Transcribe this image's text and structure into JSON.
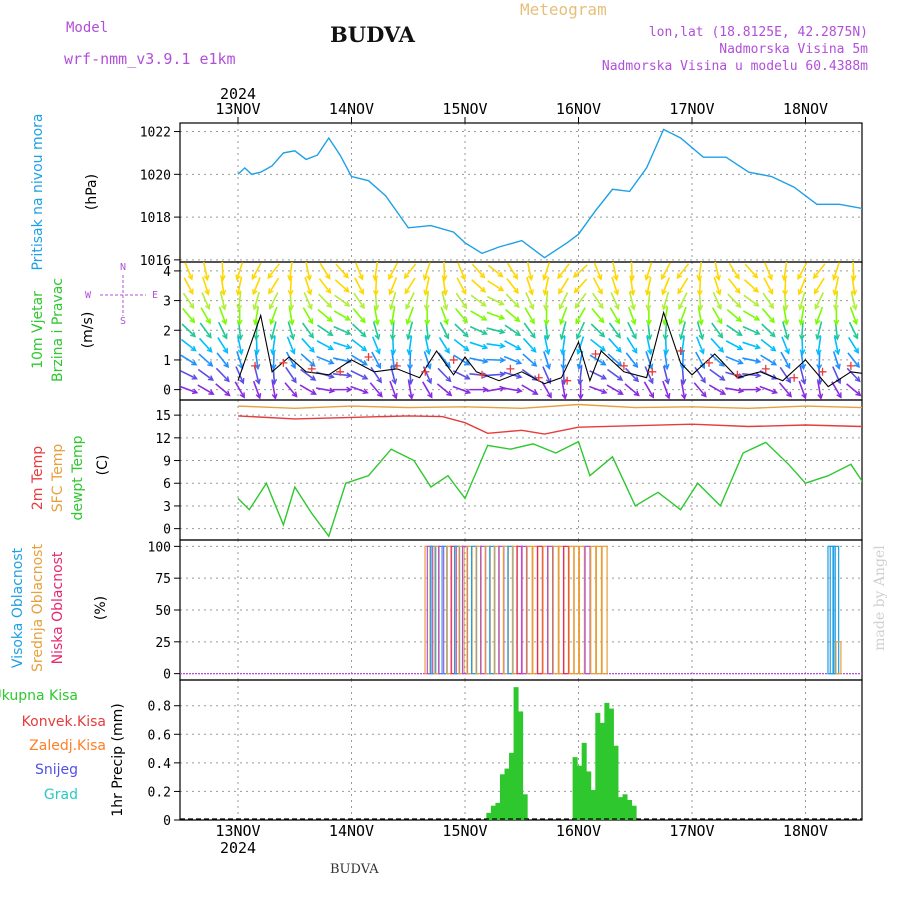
{
  "header": {
    "model_label": "Model",
    "model_name": "wrf-nmm_v3.9.1  e1km",
    "title": "BUDVA",
    "meteogram": "Meteogram",
    "lonlat": "lon,lat (18.8125E, 42.2875N)",
    "elevation": "Nadmorska Visina 5m",
    "model_elevation": "Nadmorska Visina u modelu 60.4388m",
    "footer": "BUDVA",
    "watermark": "made by Angel"
  },
  "colors": {
    "pressure": "#1ea0e6",
    "temp2m": "#e63c3c",
    "sfc": "#e6a03c",
    "dewpoint": "#2ec82e",
    "high_cloud": "#1ea0e6",
    "mid_cloud": "#e6a03c",
    "low_cloud": "#e6286e",
    "precip_total": "#2ec82e",
    "precip_conv": "#e63c3c",
    "precip_strat": "#ff7f27",
    "snow": "#5050e6",
    "graupel": "#28c8c8",
    "wind_speed": "#000000",
    "gust": "#e63c3c"
  },
  "chart_data": [
    {
      "type": "line",
      "xlabel": "",
      "x_ticks": [
        "13NOV",
        "14NOV",
        "15NOV",
        "16NOV",
        "17NOV",
        "18NOV"
      ],
      "year": "2024",
      "x": [
        0,
        0.06,
        0.12,
        0.2,
        0.3,
        0.4,
        0.5,
        0.6,
        0.7,
        0.8,
        0.9,
        1.0,
        1.15,
        1.3,
        1.5,
        1.7,
        1.9,
        2.0,
        2.15,
        2.3,
        2.5,
        2.7,
        2.9,
        3.0,
        3.15,
        3.3,
        3.45,
        3.6,
        3.75,
        3.9,
        4.1,
        4.3,
        4.5,
        4.7,
        4.9,
        5.1,
        5.3,
        5.5,
        5.7,
        5.85,
        6.0
      ],
      "values": [
        1020.0,
        1020.3,
        1020.0,
        1020.1,
        1020.4,
        1021.0,
        1021.1,
        1020.7,
        1020.9,
        1021.7,
        1020.9,
        1019.9,
        1019.7,
        1019.0,
        1017.5,
        1017.6,
        1017.3,
        1016.8,
        1016.3,
        1016.6,
        1016.9,
        1016.1,
        1016.8,
        1017.2,
        1018.3,
        1019.3,
        1019.2,
        1020.3,
        1022.1,
        1021.7,
        1020.8,
        1020.8,
        1020.1,
        1019.9,
        1019.4,
        1018.6,
        1018.6,
        1018.4,
        1017.8,
        1017.9,
        1017.0
      ],
      "ylabel": "(hPa)",
      "panel_label": "Pritisak na nivou mora",
      "ylim": [
        1015.9,
        1022.4
      ],
      "y_ticks": [
        1016,
        1018,
        1020,
        1022
      ]
    },
    {
      "type": "line",
      "panel_label_1": "10m Vjetar",
      "panel_label_2": "Brzina i Pravac",
      "ylabel": "(m/s)",
      "compass": [
        "N",
        "W",
        "E",
        "S"
      ],
      "ylim": [
        -0.35,
        4.3
      ],
      "y_ticks": [
        0,
        1,
        2,
        3,
        4
      ],
      "x": [
        0,
        0.2,
        0.3,
        0.45,
        0.6,
        0.8,
        1.0,
        1.2,
        1.4,
        1.6,
        1.75,
        1.9,
        2.0,
        2.1,
        2.3,
        2.5,
        2.7,
        2.85,
        3.0,
        3.1,
        3.2,
        3.4,
        3.6,
        3.75,
        3.9,
        4.0,
        4.2,
        4.4,
        4.6,
        4.8,
        5.0,
        5.2,
        5.4,
        5.6,
        5.8,
        6.0
      ],
      "values": [
        0.3,
        2.5,
        0.6,
        1.1,
        0.6,
        0.5,
        1.0,
        0.6,
        0.7,
        0.4,
        1.3,
        0.5,
        1.1,
        0.6,
        0.3,
        0.6,
        0.2,
        0.4,
        1.6,
        0.3,
        1.3,
        0.6,
        0.4,
        2.6,
        0.9,
        0.5,
        1.2,
        0.4,
        0.6,
        0.3,
        1.0,
        0.1,
        0.6,
        0.5,
        2.0,
        2.8
      ],
      "gust_x": [
        0.15,
        0.4,
        0.65,
        0.9,
        1.15,
        1.4,
        1.65,
        1.9,
        2.15,
        2.4,
        2.65,
        2.9,
        3.15,
        3.4,
        3.65,
        3.9,
        4.15,
        4.4,
        4.65,
        4.9,
        5.15,
        5.4,
        5.65,
        5.9
      ],
      "gust_values": [
        0.8,
        0.9,
        0.7,
        0.6,
        1.1,
        0.8,
        0.6,
        1.0,
        0.5,
        0.7,
        0.4,
        0.3,
        1.2,
        0.8,
        0.6,
        1.3,
        0.9,
        0.5,
        0.7,
        0.4,
        0.6,
        0.8,
        1.9,
        2.9
      ],
      "arrow_levels": [
        0,
        0.5,
        1.0,
        1.5,
        2.0,
        2.5,
        3.0,
        3.5,
        4.0
      ],
      "arrow_colors": [
        "#8a2be2",
        "#5a50e6",
        "#1e90ff",
        "#00bfff",
        "#20c997",
        "#7cfc00",
        "#b2ee3a",
        "#ffd700"
      ],
      "arrow_direction_deg": [
        200,
        210,
        220,
        240,
        250,
        260,
        230,
        210,
        190,
        180,
        200,
        230,
        250,
        260,
        240,
        220,
        200,
        180,
        170,
        190,
        210,
        240,
        260,
        270
      ]
    },
    {
      "type": "line",
      "panel_label_1": "2m Temp",
      "panel_label_2": "SFC Temp",
      "panel_label_3": "dewpt Temp",
      "ylabel": "(C)",
      "ylim": [
        -1.5,
        17.0
      ],
      "y_ticks": [
        0,
        3,
        6,
        9,
        12,
        15
      ],
      "series": [
        {
          "name": "SFC Temp",
          "x": [
            0,
            0.5,
            1.0,
            1.5,
            2.0,
            2.5,
            3.0,
            3.5,
            4.0,
            4.5,
            5.0,
            5.5,
            6.0
          ],
          "values": [
            16.2,
            15.9,
            16.2,
            16.0,
            16.1,
            15.9,
            16.4,
            16.0,
            16.1,
            15.9,
            16.2,
            16.0,
            16.3
          ]
        },
        {
          "name": "2m Temp",
          "x": [
            0,
            0.5,
            1.0,
            1.5,
            1.8,
            2.0,
            2.2,
            2.5,
            2.7,
            3.0,
            3.5,
            4.0,
            4.5,
            5.0,
            5.5,
            6.0
          ],
          "values": [
            14.9,
            14.5,
            14.7,
            14.9,
            14.8,
            14.0,
            12.6,
            13.0,
            12.5,
            13.4,
            13.6,
            13.8,
            13.5,
            13.7,
            13.5,
            13.6
          ]
        },
        {
          "name": "dewpt Temp",
          "x": [
            0,
            0.1,
            0.25,
            0.4,
            0.5,
            0.65,
            0.8,
            0.95,
            1.15,
            1.35,
            1.55,
            1.7,
            1.85,
            2.0,
            2.2,
            2.4,
            2.6,
            2.8,
            3.0,
            3.1,
            3.3,
            3.5,
            3.7,
            3.9,
            4.05,
            4.25,
            4.45,
            4.65,
            4.85,
            5.0,
            5.2,
            5.4,
            5.6,
            5.8,
            6.0
          ],
          "values": [
            4.0,
            2.5,
            6.0,
            0.5,
            5.5,
            2.0,
            -1.0,
            6.0,
            7.0,
            10.5,
            9.0,
            5.5,
            7.0,
            4.0,
            11.0,
            10.5,
            11.2,
            10.0,
            11.5,
            7.0,
            9.5,
            3.0,
            4.8,
            2.5,
            6.0,
            3.0,
            10.0,
            11.4,
            8.5,
            6.0,
            7.0,
            8.5,
            4.0,
            4.2,
            7.0
          ]
        }
      ]
    },
    {
      "type": "bar",
      "panel_label_1": "Visoka Oblacnost",
      "panel_label_2": "Srednja Oblacnost",
      "panel_label_3": "Niska Oblacnost",
      "ylabel": "(%)",
      "ylim": [
        -5,
        105
      ],
      "y_ticks": [
        0,
        25,
        50,
        75,
        100
      ],
      "bars": [
        {
          "x": 1.67,
          "v": 100,
          "c": "#e6a03c"
        },
        {
          "x": 1.69,
          "v": 100,
          "c": "#b24fd9"
        },
        {
          "x": 1.72,
          "v": 100,
          "c": "#1ea0e6"
        },
        {
          "x": 1.75,
          "v": 100,
          "c": "#e6a03c"
        },
        {
          "x": 1.79,
          "v": 100,
          "c": "#b24fd9"
        },
        {
          "x": 1.82,
          "v": 100,
          "c": "#1ea0e6"
        },
        {
          "x": 1.86,
          "v": 100,
          "c": "#e6a03c"
        },
        {
          "x": 1.9,
          "v": 100,
          "c": "#e6286e"
        },
        {
          "x": 1.93,
          "v": 100,
          "c": "#1ea0e6"
        },
        {
          "x": 1.97,
          "v": 100,
          "c": "#e6a03c"
        },
        {
          "x": 2.0,
          "v": 100,
          "c": "#b24fd9"
        },
        {
          "x": 2.04,
          "v": 100,
          "c": "#e6a03c"
        },
        {
          "x": 2.08,
          "v": 100,
          "c": "#1ea0e6"
        },
        {
          "x": 2.12,
          "v": 100,
          "c": "#e6a03c"
        },
        {
          "x": 2.16,
          "v": 100,
          "c": "#b24fd9"
        },
        {
          "x": 2.2,
          "v": 100,
          "c": "#e6a03c"
        },
        {
          "x": 2.24,
          "v": 100,
          "c": "#1ea0e6"
        },
        {
          "x": 2.28,
          "v": 100,
          "c": "#e6a03c"
        },
        {
          "x": 2.32,
          "v": 100,
          "c": "#b24fd9"
        },
        {
          "x": 2.36,
          "v": 100,
          "c": "#e6a03c"
        },
        {
          "x": 2.4,
          "v": 100,
          "c": "#1ea0e6"
        },
        {
          "x": 2.44,
          "v": 100,
          "c": "#e6a03c"
        },
        {
          "x": 2.48,
          "v": 100,
          "c": "#e6286e"
        },
        {
          "x": 2.52,
          "v": 100,
          "c": "#b24fd9"
        },
        {
          "x": 2.57,
          "v": 100,
          "c": "#e6a03c"
        },
        {
          "x": 2.62,
          "v": 100,
          "c": "#e6a03c"
        },
        {
          "x": 2.66,
          "v": 100,
          "c": "#e6286e"
        },
        {
          "x": 2.71,
          "v": 100,
          "c": "#e6a03c"
        },
        {
          "x": 2.75,
          "v": 100,
          "c": "#b24fd9"
        },
        {
          "x": 2.8,
          "v": 100,
          "c": "#e6a03c"
        },
        {
          "x": 2.85,
          "v": 100,
          "c": "#e6a03c"
        },
        {
          "x": 2.89,
          "v": 100,
          "c": "#e6286e"
        },
        {
          "x": 2.94,
          "v": 100,
          "c": "#e6a03c"
        },
        {
          "x": 2.98,
          "v": 100,
          "c": "#e6a03c"
        },
        {
          "x": 3.03,
          "v": 100,
          "c": "#e6a03c"
        },
        {
          "x": 3.08,
          "v": 100,
          "c": "#b24fd9"
        },
        {
          "x": 3.13,
          "v": 100,
          "c": "#e6a03c"
        },
        {
          "x": 3.18,
          "v": 100,
          "c": "#e6a03c"
        },
        {
          "x": 3.23,
          "v": 100,
          "c": "#e6a03c"
        },
        {
          "x": 5.22,
          "v": 100,
          "c": "#1ea0e6"
        },
        {
          "x": 5.24,
          "v": 100,
          "c": "#1ea0e6"
        },
        {
          "x": 5.27,
          "v": 100,
          "c": "#1ea0e6"
        },
        {
          "x": 5.29,
          "v": 25,
          "c": "#e6a03c"
        }
      ]
    },
    {
      "type": "bar",
      "ylabel": "1hr Precip (mm)",
      "legend": [
        "Ukupna Kisa",
        "Konvek.Kisa",
        "Zaledj.Kisa",
        "Snijeg",
        "Grad"
      ],
      "ylim": [
        0,
        0.98
      ],
      "y_ticks": [
        0,
        0.2,
        0.4,
        0.6,
        0.8
      ],
      "x": [
        2.21,
        2.25,
        2.29,
        2.33,
        2.37,
        2.41,
        2.45,
        2.49,
        2.53,
        2.97,
        3.01,
        3.05,
        3.09,
        3.13,
        3.17,
        3.21,
        3.25,
        3.29,
        3.33,
        3.37,
        3.41,
        3.45,
        3.49,
        3.53
      ],
      "values": [
        0.05,
        0.1,
        0.12,
        0.32,
        0.36,
        0.47,
        0.93,
        0.76,
        0.18,
        0.44,
        0.38,
        0.54,
        0.34,
        0.21,
        0.75,
        0.68,
        0.82,
        0.78,
        0.52,
        0.16,
        0.18,
        0.14,
        0.1,
        0.0
      ]
    }
  ]
}
